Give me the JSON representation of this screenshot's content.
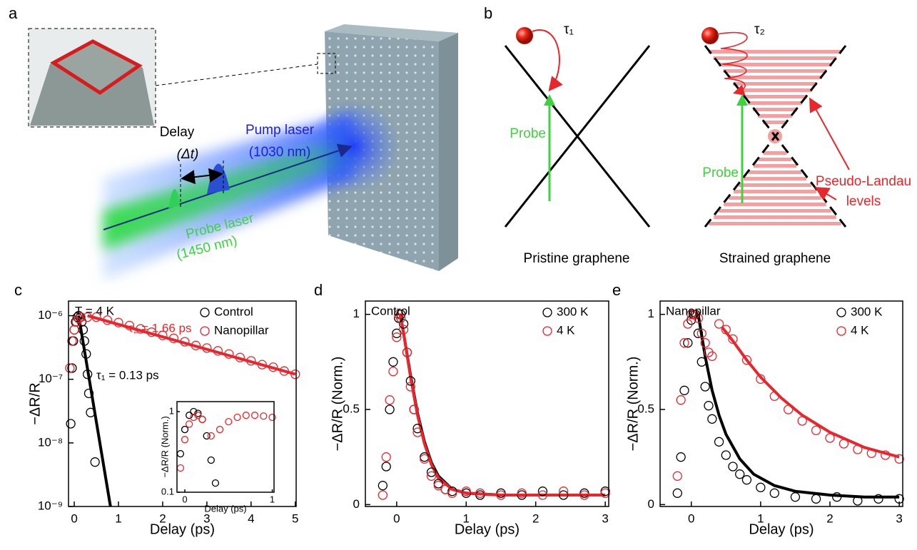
{
  "illustration": {
    "label": "a",
    "delay": "Delay",
    "delta_t": "(Δt)",
    "pump": "Pump laser",
    "pump_wavelength": "(1030 nm)",
    "probe": "Probe laser",
    "probe_wavelength": "(1450 nm)"
  },
  "diagram": {
    "label": "b",
    "tau1": "τ₁",
    "tau2": "τ₂",
    "probe_left": "Probe",
    "probe_right": "Probe",
    "pseudo_landau": "Pseudo-Landau",
    "levels": "levels",
    "left_caption": "Pristine graphene",
    "right_caption": "Strained graphene"
  },
  "chart_data": [
    {
      "type": "scatter",
      "panel_label": "c",
      "xlabel": "Delay (ps)",
      "ylabel": "−ΔR/R",
      "log_y": true,
      "xlim": [
        -0.13,
        5.02
      ],
      "ylim": [
        1e-09,
        1.7e-06
      ],
      "xticks": [
        0,
        1,
        2,
        3,
        4,
        5
      ],
      "yticks": [
        {
          "value": 1e-09,
          "label": "10⁻⁹"
        },
        {
          "value": 1e-08,
          "label": "10⁻⁸"
        },
        {
          "value": 1e-07,
          "label": "10⁻⁷"
        },
        {
          "value": 1e-06,
          "label": "10⁻⁶"
        }
      ],
      "legend": "upper right",
      "annotations": [
        {
          "text": "T = 4 K",
          "color": "#000000"
        },
        {
          "text": "τ₂ = 1.66 ps",
          "color": "#e8262b"
        },
        {
          "text": "τ₁ = 0.13 ps",
          "color": "#000000"
        }
      ],
      "series": [
        {
          "name": "Control",
          "color": "#000000",
          "x": [
            -0.08,
            -0.05,
            -0.02,
            0.0,
            0.03,
            0.07,
            0.1,
            0.13,
            0.17,
            0.2,
            0.23,
            0.27,
            0.3,
            0.33,
            0.37,
            0.47
          ],
          "values": [
            2e-08,
            1.5e-07,
            4e-07,
            6e-07,
            8e-07,
            9.5e-07,
            1e-06,
            9.5e-07,
            8e-07,
            6e-07,
            4e-07,
            2.5e-07,
            1.2e-07,
            6e-08,
            3e-08,
            5e-09
          ]
        },
        {
          "name": "Nanopillar",
          "color": "#e8262b",
          "x": [
            -0.1,
            -0.05,
            0.0,
            0.05,
            0.1,
            0.15,
            0.3,
            0.5,
            0.75,
            1.0,
            1.25,
            1.5,
            1.75,
            2.0,
            2.25,
            2.5,
            2.75,
            3.0,
            3.25,
            3.5,
            3.75,
            4.0,
            4.25,
            4.5,
            4.75,
            5.0
          ],
          "values": [
            1.5e-07,
            4e-07,
            6e-07,
            8e-07,
            9e-07,
            9.5e-07,
            9.5e-07,
            9.5e-07,
            8.5e-07,
            7.8e-07,
            7e-07,
            6.2e-07,
            5.5e-07,
            4.9e-07,
            4.4e-07,
            3.9e-07,
            3.4e-07,
            3.1e-07,
            2.8e-07,
            2.5e-07,
            2.2e-07,
            1.95e-07,
            1.7e-07,
            1.55e-07,
            1.35e-07,
            1.2e-07
          ]
        }
      ],
      "fits": [
        {
          "color": "#000000",
          "x": [
            0.1,
            0.82
          ],
          "values": [
            1e-06,
            1e-09
          ]
        },
        {
          "color": "#e8262b",
          "x": [
            0.3,
            5.0
          ],
          "values": [
            1e-06,
            1.2e-07
          ]
        }
      ]
    },
    {
      "type": "scatter",
      "xlabel": "Delay (ps)",
      "ylabel": "−ΔR/R (Norm.)",
      "log_y": true,
      "xlim": [
        -0.09,
        1.02
      ],
      "ylim": [
        0.1,
        1.33
      ],
      "xticks": [
        0,
        1
      ],
      "yticks": [
        0.1,
        1
      ],
      "series": [
        {
          "color": "#000000",
          "x": [
            -0.05,
            0.0,
            0.05,
            0.1,
            0.15,
            0.2,
            0.25,
            0.3,
            0.35
          ],
          "values": [
            0.3,
            0.6,
            0.9,
            1.0,
            0.95,
            0.8,
            0.5,
            0.25,
            0.13
          ]
        },
        {
          "color": "#e8262b",
          "x": [
            -0.05,
            0.0,
            0.05,
            0.1,
            0.15,
            0.2,
            0.3,
            0.4,
            0.5,
            0.6,
            0.7,
            0.8,
            0.9,
            1.0
          ],
          "values": [
            0.2,
            0.45,
            0.7,
            0.85,
            0.9,
            0.8,
            0.5,
            0.6,
            0.75,
            0.85,
            0.9,
            0.9,
            0.88,
            0.85
          ]
        }
      ]
    },
    {
      "type": "scatter",
      "panel_label": "d",
      "xlabel": "Delay (ps)",
      "ylabel": "−ΔR/R (Norm.)",
      "log_y": false,
      "xlim": [
        -0.45,
        3.05
      ],
      "ylim": [
        -0.01,
        1.07
      ],
      "xticks": [
        0,
        1,
        2,
        3
      ],
      "yticks": [
        0,
        0.5,
        1
      ],
      "legend": "upper right",
      "annotations": [
        {
          "text": "Control",
          "color": "#000000"
        }
      ],
      "series": [
        {
          "name": "300 K",
          "color": "#000000",
          "x": [
            -0.2,
            -0.15,
            -0.1,
            -0.05,
            0.0,
            0.03,
            0.06,
            0.1,
            0.15,
            0.2,
            0.25,
            0.3,
            0.4,
            0.5,
            0.6,
            0.7,
            0.8,
            1.0,
            1.2,
            1.5,
            1.8,
            2.1,
            2.4,
            2.7,
            3.0
          ],
          "values": [
            0.1,
            0.2,
            0.5,
            0.75,
            0.9,
            0.98,
            1.0,
            0.95,
            0.8,
            0.65,
            0.5,
            0.4,
            0.25,
            0.17,
            0.11,
            0.08,
            0.07,
            0.06,
            0.05,
            0.06,
            0.05,
            0.07,
            0.05,
            0.06,
            0.07
          ]
        },
        {
          "name": "4 K",
          "color": "#e8262b",
          "x": [
            -0.2,
            -0.15,
            -0.1,
            -0.05,
            0.0,
            0.03,
            0.06,
            0.1,
            0.15,
            0.2,
            0.25,
            0.3,
            0.4,
            0.5,
            0.6,
            0.7,
            0.8,
            1.0,
            1.2,
            1.5,
            1.8,
            2.1,
            2.4,
            2.7,
            3.0
          ],
          "values": [
            0.05,
            0.25,
            0.55,
            0.7,
            0.88,
            1.0,
            0.98,
            0.92,
            0.8,
            0.62,
            0.5,
            0.38,
            0.24,
            0.15,
            0.1,
            0.08,
            0.06,
            0.07,
            0.06,
            0.05,
            0.06,
            0.05,
            0.07,
            0.05,
            0.06
          ]
        }
      ],
      "fits": [
        {
          "color": "#000000",
          "x": [
            0.05,
            0.1,
            0.2,
            0.3,
            0.4,
            0.5,
            0.6,
            0.8,
            1.0,
            1.5,
            2.0,
            3.0
          ],
          "values": [
            1.0,
            0.9,
            0.68,
            0.48,
            0.33,
            0.22,
            0.15,
            0.08,
            0.06,
            0.05,
            0.05,
            0.05
          ]
        },
        {
          "color": "#e8262b",
          "x": [
            0.05,
            0.1,
            0.2,
            0.3,
            0.4,
            0.5,
            0.6,
            0.8,
            1.0,
            1.5,
            2.0,
            3.0
          ],
          "values": [
            1.0,
            0.9,
            0.67,
            0.47,
            0.32,
            0.21,
            0.14,
            0.08,
            0.06,
            0.05,
            0.05,
            0.05
          ]
        }
      ]
    },
    {
      "type": "scatter",
      "panel_label": "e",
      "xlabel": "Delay (ps)",
      "ylabel": "−ΔR/R (Norm.)",
      "log_y": false,
      "xlim": [
        -0.45,
        3.05
      ],
      "ylim": [
        -0.01,
        1.07
      ],
      "xticks": [
        0,
        1,
        2,
        3
      ],
      "yticks": [
        0,
        0.5,
        1
      ],
      "legend": "upper right",
      "annotations": [
        {
          "text": "Nanopillar",
          "color": "#000000"
        }
      ],
      "series": [
        {
          "name": "300 K",
          "color": "#000000",
          "x": [
            -0.2,
            -0.15,
            -0.1,
            -0.05,
            0.0,
            0.03,
            0.06,
            0.1,
            0.15,
            0.2,
            0.25,
            0.3,
            0.4,
            0.5,
            0.6,
            0.7,
            0.8,
            1.0,
            1.2,
            1.5,
            1.8,
            2.1,
            2.4,
            2.7,
            3.0
          ],
          "values": [
            0.06,
            0.25,
            0.6,
            0.85,
            0.97,
            1.0,
            1.0,
            0.9,
            0.75,
            0.62,
            0.52,
            0.45,
            0.33,
            0.26,
            0.2,
            0.16,
            0.13,
            0.09,
            0.06,
            0.04,
            0.03,
            0.04,
            0.02,
            0.03,
            0.03
          ]
        },
        {
          "name": "4 K",
          "color": "#e8262b",
          "x": [
            -0.2,
            -0.15,
            -0.1,
            -0.05,
            0.0,
            0.05,
            0.1,
            0.15,
            0.2,
            0.25,
            0.3,
            0.4,
            0.5,
            0.6,
            0.8,
            1.0,
            1.2,
            1.4,
            1.6,
            1.8,
            2.0,
            2.2,
            2.4,
            2.6,
            2.8,
            3.0
          ],
          "values": [
            0.15,
            0.55,
            0.85,
            0.95,
            1.0,
            1.0,
            0.98,
            0.9,
            0.85,
            0.8,
            0.78,
            0.95,
            0.92,
            0.87,
            0.76,
            0.66,
            0.57,
            0.5,
            0.44,
            0.39,
            0.35,
            0.32,
            0.29,
            0.27,
            0.26,
            0.24
          ]
        }
      ],
      "fits": [
        {
          "color": "#000000",
          "x": [
            0.1,
            0.2,
            0.3,
            0.4,
            0.5,
            0.7,
            0.9,
            1.2,
            1.5,
            2.0,
            2.5,
            3.0
          ],
          "values": [
            1.0,
            0.78,
            0.6,
            0.47,
            0.37,
            0.24,
            0.16,
            0.1,
            0.07,
            0.05,
            0.04,
            0.04
          ]
        },
        {
          "color": "#e8262b",
          "x": [
            0.45,
            0.6,
            0.8,
            1.0,
            1.3,
            1.6,
            2.0,
            2.5,
            3.0
          ],
          "values": [
            0.93,
            0.86,
            0.76,
            0.67,
            0.56,
            0.47,
            0.38,
            0.3,
            0.25
          ]
        }
      ]
    }
  ]
}
